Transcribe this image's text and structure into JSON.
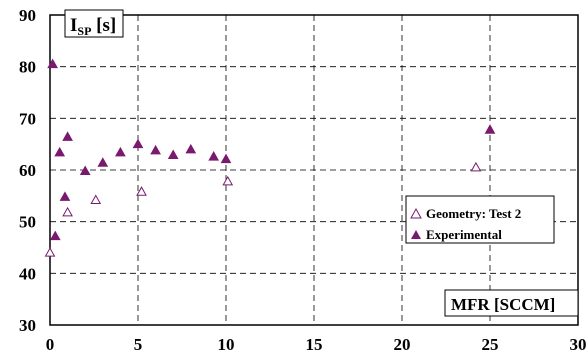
{
  "chart_data": {
    "type": "scatter",
    "xlim": [
      0,
      30
    ],
    "ylim": [
      30,
      90
    ],
    "x_ticks": [
      "0",
      "5",
      "10",
      "15",
      "20",
      "25",
      "30"
    ],
    "y_ticks": [
      "30",
      "40",
      "50",
      "60",
      "70",
      "80",
      "90"
    ],
    "ylabel": {
      "main": "I",
      "sub": "SP",
      "unit": " [s]"
    },
    "xlabel": "MFR [SCCM]",
    "grid": true,
    "legend_position": "middle-right",
    "series": [
      {
        "name": "Geometry: Test 2",
        "marker": "open-triangle",
        "color": "#7a1a6e",
        "points": [
          [
            0.0,
            44.0
          ],
          [
            1.0,
            51.8
          ],
          [
            2.6,
            54.2
          ],
          [
            5.2,
            55.8
          ],
          [
            10.1,
            57.8
          ],
          [
            24.2,
            60.5
          ]
        ]
      },
      {
        "name": "Experimental",
        "marker": "filled-triangle",
        "color": "#7a1a6e",
        "points": [
          [
            0.15,
            80.5
          ],
          [
            0.3,
            47.2
          ],
          [
            0.55,
            63.4
          ],
          [
            0.85,
            54.8
          ],
          [
            1.0,
            66.4
          ],
          [
            2.0,
            59.8
          ],
          [
            3.0,
            61.4
          ],
          [
            4.0,
            63.4
          ],
          [
            5.0,
            65.0
          ],
          [
            6.0,
            63.8
          ],
          [
            7.0,
            62.9
          ],
          [
            8.0,
            64.0
          ],
          [
            9.3,
            62.6
          ],
          [
            10.0,
            62.1
          ],
          [
            25.0,
            67.8
          ]
        ]
      }
    ]
  }
}
